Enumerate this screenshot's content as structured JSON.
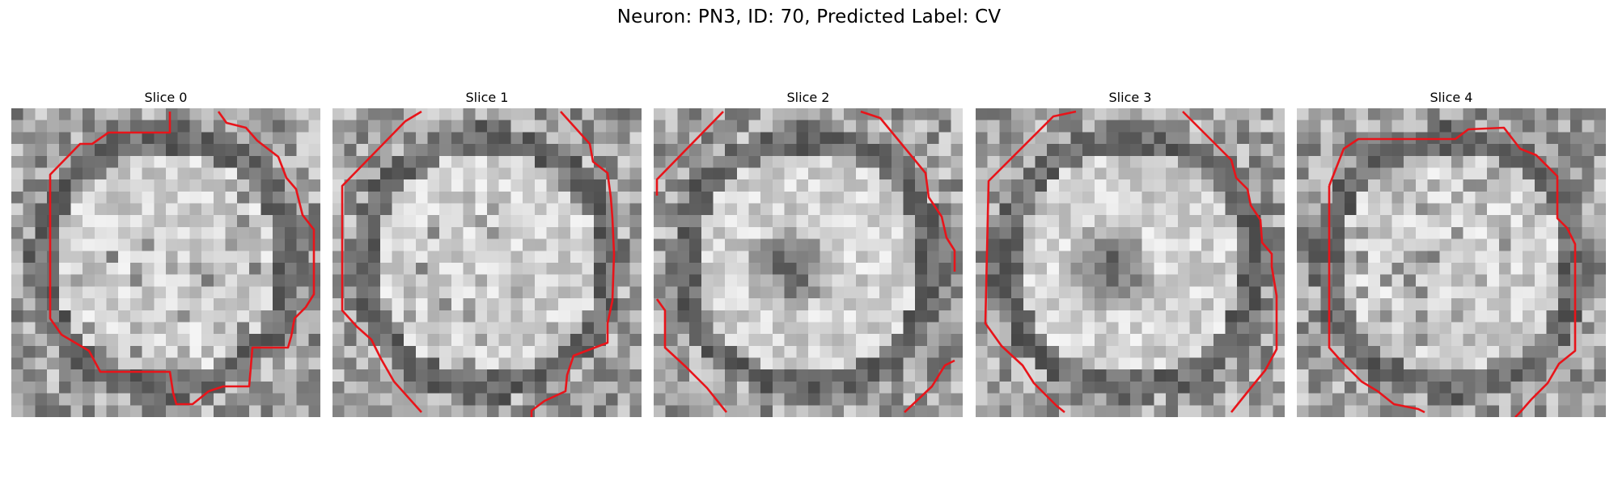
{
  "figure": {
    "title": "Neuron: PN3, ID: 70, Predicted Label: CV"
  },
  "panels": [
    {
      "title": "Slice 0",
      "seed": 11,
      "dark_center": false
    },
    {
      "title": "Slice 1",
      "seed": 23,
      "dark_center": false
    },
    {
      "title": "Slice 2",
      "seed": 37,
      "dark_center": true
    },
    {
      "title": "Slice 3",
      "seed": 41,
      "dark_center": true
    },
    {
      "title": "Slice 4",
      "seed": 53,
      "dark_center": false
    }
  ],
  "colors": {
    "contour": "#e8141a",
    "background": "#ffffff"
  },
  "image_style": "grayscale pixelated EM crop with red segmentation contour"
}
